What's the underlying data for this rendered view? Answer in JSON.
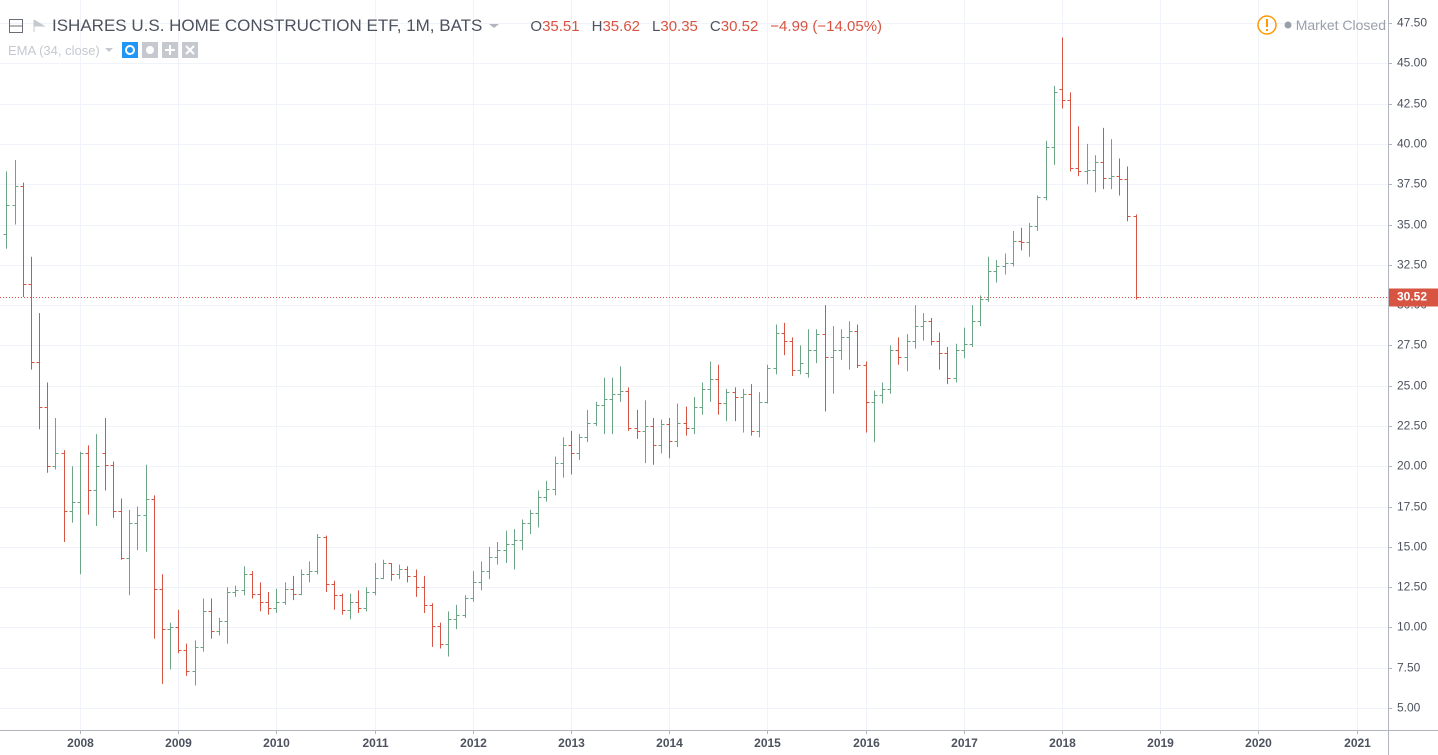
{
  "chart_data": {
    "type": "ohlc",
    "title": "ISHARES U.S. HOME CONSTRUCTION ETF, 1M, BATS",
    "change_label": "−4.99 (−14.05%)",
    "indicator": "EMA (34, close)",
    "status": "Market Closed",
    "up_color": "#6ba583",
    "down_color": "#d75442",
    "grid": true,
    "xlim": [
      2007.185,
      2021.32
    ],
    "xticks": [
      2008,
      2009,
      2010,
      2011,
      2012,
      2013,
      2014,
      2015,
      2016,
      2017,
      2018,
      2019,
      2020,
      2021
    ],
    "ylim": [
      3.64,
      48.93
    ],
    "yticks": [
      {
        "value": 5,
        "label": "5.00"
      },
      {
        "value": 7.5,
        "label": "7.50"
      },
      {
        "value": 10,
        "label": "10.00"
      },
      {
        "value": 12.5,
        "label": "12.50"
      },
      {
        "value": 15,
        "label": "15.00"
      },
      {
        "value": 17.5,
        "label": "17.50"
      },
      {
        "value": 20,
        "label": "20.00"
      },
      {
        "value": 22.5,
        "label": "22.50"
      },
      {
        "value": 25,
        "label": "25.00"
      },
      {
        "value": 27.5,
        "label": "27.50"
      },
      {
        "value": 30,
        "label": "30.00"
      },
      {
        "value": 32.5,
        "label": "32.50"
      },
      {
        "value": 35,
        "label": "35.00"
      },
      {
        "value": 37.5,
        "label": "37.50"
      },
      {
        "value": 40,
        "label": "40.00"
      },
      {
        "value": 42.5,
        "label": "42.50"
      },
      {
        "value": 45,
        "label": "45.00"
      },
      {
        "value": 47.5,
        "label": "47.50"
      }
    ],
    "x": [
      2007.25,
      2007.333,
      2007.417,
      2007.5,
      2007.583,
      2007.667,
      2007.75,
      2007.833,
      2007.917,
      2008.0,
      2008.083,
      2008.167,
      2008.25,
      2008.333,
      2008.417,
      2008.5,
      2008.583,
      2008.667,
      2008.75,
      2008.833,
      2008.917,
      2009.0,
      2009.083,
      2009.167,
      2009.25,
      2009.333,
      2009.417,
      2009.5,
      2009.583,
      2009.667,
      2009.75,
      2009.833,
      2009.917,
      2010.0,
      2010.083,
      2010.167,
      2010.25,
      2010.333,
      2010.417,
      2010.5,
      2010.583,
      2010.667,
      2010.75,
      2010.833,
      2010.917,
      2011.0,
      2011.083,
      2011.167,
      2011.25,
      2011.333,
      2011.417,
      2011.5,
      2011.583,
      2011.667,
      2011.75,
      2011.833,
      2011.917,
      2012.0,
      2012.083,
      2012.167,
      2012.25,
      2012.333,
      2012.417,
      2012.5,
      2012.583,
      2012.667,
      2012.75,
      2012.833,
      2012.917,
      2013.0,
      2013.083,
      2013.167,
      2013.25,
      2013.333,
      2013.417,
      2013.5,
      2013.583,
      2013.667,
      2013.75,
      2013.833,
      2013.917,
      2014.0,
      2014.083,
      2014.167,
      2014.25,
      2014.333,
      2014.417,
      2014.5,
      2014.583,
      2014.667,
      2014.75,
      2014.833,
      2014.917,
      2015.0,
      2015.083,
      2015.167,
      2015.25,
      2015.333,
      2015.417,
      2015.5,
      2015.583,
      2015.667,
      2015.75,
      2015.833,
      2015.917,
      2016.0,
      2016.083,
      2016.167,
      2016.25,
      2016.333,
      2016.417,
      2016.5,
      2016.583,
      2016.667,
      2016.75,
      2016.833,
      2016.917,
      2017.0,
      2017.083,
      2017.167,
      2017.25,
      2017.333,
      2017.417,
      2017.5,
      2017.583,
      2017.667,
      2017.75,
      2017.833,
      2017.917,
      2018.0,
      2018.083,
      2018.167,
      2018.25,
      2018.333,
      2018.417,
      2018.5,
      2018.583,
      2018.667,
      2018.75
    ],
    "open": [
      34.4,
      36.2,
      37.4,
      31.3,
      26.5,
      23.7,
      20.0,
      20.8,
      17.2,
      17.8,
      20.8,
      18.5,
      20.8,
      20.1,
      17.2,
      14.3,
      16.5,
      17.0,
      18.0,
      12.4,
      9.9,
      10.0,
      8.6,
      7.3,
      8.8,
      11.0,
      9.8,
      10.4,
      12.2,
      12.3,
      13.3,
      12.1,
      11.6,
      11.2,
      11.6,
      12.4,
      12.1,
      13.3,
      13.5,
      15.6,
      12.7,
      12.0,
      11.1,
      11.6,
      11.2,
      12.2,
      13.1,
      14.0,
      13.3,
      13.6,
      13.2,
      12.5,
      11.4,
      10.1,
      9.0,
      10.5,
      10.8,
      11.8,
      12.8,
      13.5,
      14.4,
      14.8,
      15.2,
      15.4,
      16.5,
      17.1,
      18.1,
      18.6,
      20.2,
      21.3,
      20.8,
      21.8,
      22.7,
      23.8,
      24.2,
      24.5,
      24.7,
      22.4,
      22.2,
      22.5,
      21.3,
      22.6,
      21.6,
      22.7,
      22.4,
      23.7,
      24.8,
      25.4,
      23.9,
      24.6,
      24.3,
      24.5,
      22.2,
      24.0,
      26.1,
      28.3,
      27.8,
      26.0,
      25.8,
      27.2,
      28.2,
      26.8,
      27.2,
      28.0,
      28.4,
      26.3,
      24.0,
      24.4,
      24.8,
      27.2,
      26.8,
      27.8,
      28.7,
      29.0,
      27.8,
      27.0,
      25.5,
      27.2,
      27.6,
      29.0,
      30.4,
      32.1,
      32.4,
      32.6,
      34.0,
      33.9,
      34.9,
      36.7,
      39.8,
      43.4,
      42.7,
      38.5,
      38.3,
      38.4,
      38.9,
      37.9,
      38.0,
      37.8,
      35.51
    ],
    "high": [
      38.3,
      39.0,
      37.6,
      33.0,
      29.5,
      25.2,
      23.0,
      21.0,
      20.0,
      20.9,
      21.3,
      22.0,
      23.0,
      20.3,
      18.0,
      17.3,
      17.5,
      20.1,
      18.2,
      13.3,
      10.3,
      11.1,
      9.0,
      9.2,
      11.8,
      11.8,
      10.6,
      12.5,
      12.6,
      13.8,
      13.5,
      12.8,
      12.2,
      12.4,
      12.8,
      13.2,
      13.6,
      14.1,
      15.8,
      15.7,
      12.9,
      12.1,
      12.1,
      12.3,
      12.5,
      14.0,
      14.2,
      14.0,
      13.9,
      13.8,
      13.6,
      13.2,
      11.5,
      10.3,
      11.0,
      11.4,
      12.0,
      13.5,
      14.1,
      15.0,
      15.3,
      16.0,
      16.1,
      16.7,
      17.3,
      18.5,
      19.1,
      20.6,
      21.8,
      22.2,
      22.0,
      23.5,
      24.0,
      25.5,
      25.5,
      26.2,
      24.9,
      23.5,
      24.1,
      23.0,
      22.9,
      23.0,
      23.9,
      23.7,
      24.3,
      25.2,
      26.5,
      26.3,
      24.8,
      24.9,
      24.8,
      25.1,
      24.6,
      26.3,
      28.8,
      28.9,
      28.0,
      27.5,
      28.5,
      28.5,
      30.0,
      28.7,
      28.5,
      29.0,
      28.8,
      26.5,
      24.7,
      25.2,
      27.5,
      28.0,
      28.2,
      30.0,
      29.5,
      29.2,
      28.3,
      27.4,
      27.6,
      28.6,
      30.0,
      30.6,
      33.0,
      32.8,
      33.2,
      34.6,
      34.8,
      35.1,
      36.8,
      40.2,
      43.6,
      46.6,
      43.2,
      41.1,
      40.0,
      39.3,
      41.0,
      40.3,
      39.1,
      38.6,
      35.62
    ],
    "low": [
      33.5,
      35.0,
      30.5,
      26.0,
      22.3,
      19.6,
      19.8,
      15.3,
      16.5,
      13.3,
      17.0,
      16.3,
      18.5,
      16.8,
      14.2,
      12.0,
      14.8,
      14.7,
      9.3,
      6.5,
      7.4,
      8.4,
      7.0,
      6.4,
      8.5,
      9.3,
      9.5,
      9.0,
      11.9,
      12.0,
      11.8,
      11.0,
      10.8,
      10.9,
      11.4,
      11.7,
      12.0,
      12.8,
      13.3,
      12.2,
      11.1,
      10.8,
      10.5,
      10.9,
      11.0,
      12.0,
      13.0,
      12.9,
      13.0,
      12.8,
      11.9,
      10.9,
      8.8,
      8.7,
      8.2,
      9.9,
      10.6,
      11.6,
      12.3,
      13.0,
      13.9,
      14.0,
      13.6,
      14.8,
      15.8,
      16.2,
      17.8,
      18.2,
      19.3,
      19.5,
      20.4,
      21.5,
      22.5,
      22.0,
      22.0,
      24.0,
      22.2,
      21.7,
      20.2,
      20.1,
      20.8,
      20.5,
      21.2,
      21.9,
      22.0,
      23.2,
      24.0,
      23.2,
      22.8,
      22.8,
      22.1,
      21.9,
      21.8,
      23.9,
      25.7,
      26.9,
      25.6,
      25.7,
      25.5,
      26.4,
      23.4,
      24.5,
      26.6,
      26.0,
      26.1,
      22.1,
      21.5,
      23.9,
      24.5,
      26.3,
      25.9,
      27.3,
      27.8,
      27.5,
      26.0,
      25.1,
      25.2,
      26.7,
      27.4,
      28.7,
      30.2,
      31.4,
      31.9,
      32.4,
      33.4,
      33.0,
      34.6,
      36.5,
      38.7,
      42.2,
      38.3,
      38.0,
      37.5,
      37.0,
      37.2,
      37.2,
      36.8,
      35.2,
      30.35
    ],
    "close": [
      36.2,
      37.4,
      31.3,
      26.5,
      23.7,
      20.0,
      20.8,
      17.2,
      17.8,
      20.8,
      18.5,
      20.0,
      20.1,
      17.2,
      14.3,
      16.5,
      17.0,
      18.0,
      12.4,
      9.9,
      10.0,
      8.6,
      7.3,
      8.8,
      11.0,
      9.8,
      10.4,
      12.2,
      12.3,
      13.3,
      12.1,
      11.6,
      11.2,
      11.6,
      12.4,
      12.1,
      13.3,
      13.5,
      15.6,
      12.7,
      12.0,
      11.1,
      11.6,
      11.2,
      12.2,
      13.1,
      14.0,
      13.3,
      13.6,
      13.2,
      12.5,
      11.4,
      10.1,
      9.0,
      10.5,
      10.8,
      11.8,
      12.8,
      13.5,
      14.4,
      14.8,
      15.2,
      15.4,
      16.5,
      17.1,
      18.1,
      18.6,
      20.2,
      21.3,
      20.8,
      21.8,
      22.7,
      23.8,
      24.2,
      24.5,
      24.7,
      22.4,
      22.2,
      22.5,
      21.3,
      22.6,
      21.6,
      22.7,
      22.4,
      23.7,
      24.8,
      25.4,
      23.9,
      24.6,
      24.3,
      24.5,
      22.2,
      24.0,
      26.1,
      28.3,
      27.8,
      26.0,
      26.4,
      27.2,
      28.2,
      26.8,
      27.2,
      28.0,
      28.4,
      26.3,
      24.0,
      24.4,
      24.8,
      27.2,
      26.8,
      27.8,
      28.7,
      29.0,
      27.8,
      27.0,
      25.5,
      27.2,
      27.6,
      29.0,
      30.4,
      32.1,
      32.4,
      32.6,
      34.0,
      33.9,
      34.9,
      36.7,
      39.8,
      43.2,
      42.7,
      38.5,
      38.3,
      38.4,
      38.9,
      37.9,
      38.0,
      37.8,
      35.5,
      30.52
    ]
  }
}
